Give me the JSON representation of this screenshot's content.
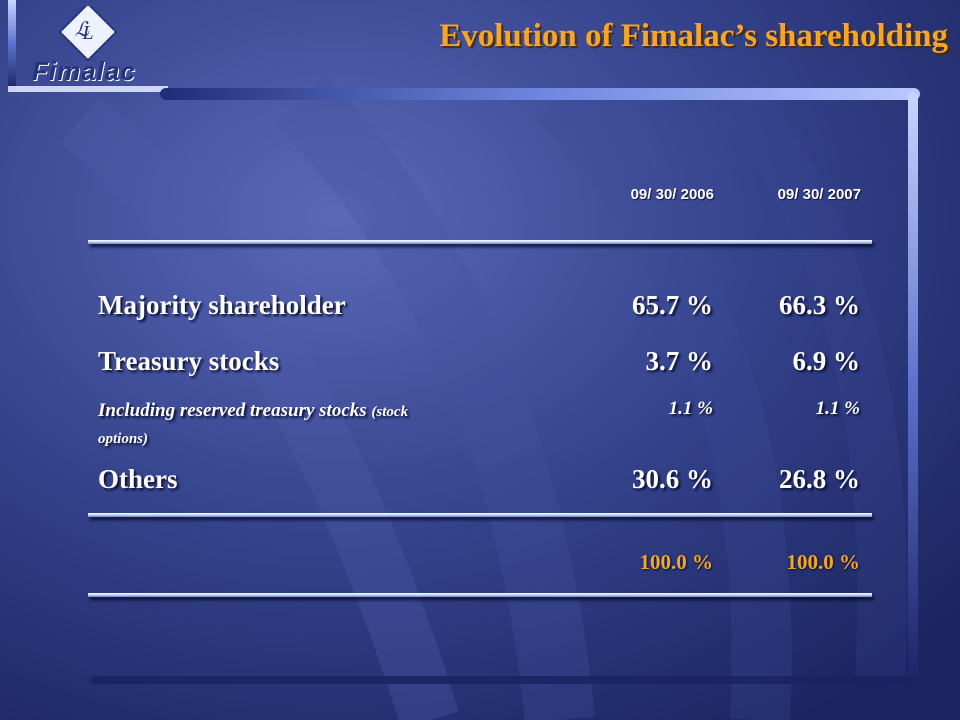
{
  "header": {
    "logo_text": "Fimalac",
    "title": "Evolution of Fimalac’s shareholding"
  },
  "table": {
    "columns": [
      "09/ 30/ 2006",
      "09/ 30/ 2007"
    ],
    "rows": [
      {
        "label": "Majority shareholder",
        "values": [
          "65.7 %",
          "66.3 %"
        ]
      },
      {
        "label": "Treasury stocks",
        "values": [
          "3.7 %",
          "6.9 %"
        ]
      },
      {
        "label": "Including reserved treasury stocks",
        "label_note": "(stock",
        "label_cont": "options)",
        "values": [
          "1.1 %",
          "1.1 %"
        ]
      },
      {
        "label": "Others",
        "values": [
          "30.6 %",
          "26.8 %"
        ]
      }
    ],
    "total": {
      "values": [
        "100.0 %",
        "100.0 %"
      ]
    }
  },
  "colors": {
    "background": "#2c3a7a",
    "accent": "#f5a623",
    "text": "#ffffff"
  }
}
